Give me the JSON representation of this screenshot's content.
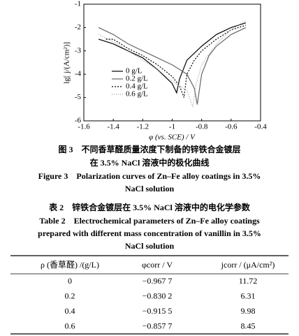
{
  "chart_data": {
    "type": "line",
    "xlabel": "φ (vs. SCE) / V",
    "ylabel": "lg[ j/(A/cm²)]",
    "xlim": [
      -1.6,
      -0.4
    ],
    "xticks": [
      -1.6,
      -1.4,
      -1.2,
      -1,
      -0.8,
      -0.6,
      -0.4
    ],
    "ylim": [
      -6,
      -1
    ],
    "yticks": [
      -6,
      -5,
      -4,
      -3,
      -2,
      -1
    ],
    "legend": "upper-left",
    "series": [
      {
        "name": "0 g/L",
        "color": "#000000",
        "dash": "none",
        "x": [
          -1.5,
          -1.4,
          -1.3,
          -1.2,
          -1.1,
          -1.0,
          -0.97,
          -0.95,
          -0.9,
          -0.8,
          -0.7,
          -0.6,
          -0.5
        ],
        "values": [
          -2.5,
          -2.7,
          -3.0,
          -3.3,
          -3.8,
          -4.4,
          -4.8,
          -4.2,
          -3.4,
          -2.8,
          -2.3,
          -2.0,
          -1.8
        ]
      },
      {
        "name": "0.2 g/L",
        "color": "#666666",
        "dash": "none",
        "x": [
          -1.5,
          -1.4,
          -1.3,
          -1.2,
          -1.1,
          -1.0,
          -0.9,
          -0.85,
          -0.83,
          -0.8,
          -0.75,
          -0.7,
          -0.6,
          -0.5
        ],
        "values": [
          -2.0,
          -2.3,
          -2.7,
          -3.0,
          -3.3,
          -3.6,
          -4.0,
          -4.6,
          -5.3,
          -4.0,
          -3.2,
          -2.8,
          -2.3,
          -2.0
        ]
      },
      {
        "name": "0.4 g/L",
        "color": "#000000",
        "dash": "2,2",
        "x": [
          -1.45,
          -1.4,
          -1.3,
          -1.2,
          -1.1,
          -1.0,
          -0.95,
          -0.92,
          -0.9,
          -0.85,
          -0.8,
          -0.7,
          -0.6,
          -0.5
        ],
        "values": [
          -2.5,
          -2.5,
          -2.9,
          -3.2,
          -3.6,
          -4.1,
          -4.5,
          -5.0,
          -4.0,
          -3.4,
          -3.0,
          -2.5,
          -2.1,
          -1.9
        ]
      },
      {
        "name": "0.6 g/L",
        "color": "#999999",
        "dash": "1,2",
        "x": [
          -1.5,
          -1.4,
          -1.3,
          -1.2,
          -1.1,
          -1.0,
          -0.9,
          -0.86,
          -0.84,
          -0.8,
          -0.7,
          -0.6,
          -0.5
        ],
        "values": [
          -2.3,
          -2.6,
          -3.0,
          -3.4,
          -3.8,
          -4.3,
          -4.7,
          -5.4,
          -4.5,
          -3.6,
          -2.7,
          -2.1,
          -1.7
        ]
      }
    ]
  },
  "figure_caption": {
    "cn": [
      "图 3　不同香草醛质量浓度下制备的锌铁合金镀层",
      "在 3.5% NaCl 溶液中的极化曲线"
    ],
    "en": [
      "Figure 3　Polarization curves of Zn–Fe alloy coatings in 3.5%",
      "NaCl solution"
    ]
  },
  "table_caption": {
    "cn": "表 2　锌铁合金镀层在 3.5% NaCl 溶液中的电化学参数",
    "en": [
      "Table 2　Electrochemical parameters of Zn–Fe alloy coatings",
      "prepared with different mass concentration of vanillin in 3.5%",
      "NaCl solution"
    ]
  },
  "table": {
    "header": [
      "ρ (香草醛) /(g/L)",
      "φcorr / V",
      "jcorr / (μA/cm²)"
    ],
    "rows": [
      [
        "0",
        "−0.967 7",
        "11.72"
      ],
      [
        "0.2",
        "−0.830 2",
        "6.31"
      ],
      [
        "0.4",
        "−0.915 5",
        "9.98"
      ],
      [
        "0.6",
        "−0.857 7",
        "8.45"
      ]
    ]
  }
}
